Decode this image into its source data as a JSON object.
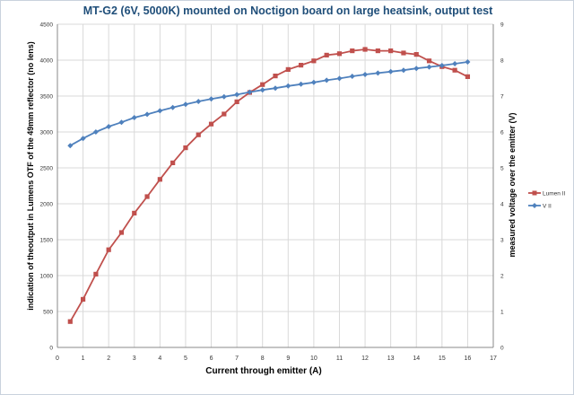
{
  "chart_data": {
    "type": "line",
    "title": "MT-G2 (6V, 5000K) mounted on Noctigon board on large heatsink, output test",
    "xlabel": "Current through emitter (A)",
    "ylabel": "indication of theoutput in Lumens OTF of the 49mm reflector (no lens)",
    "y2label": "measured voltage over the emitter (V)",
    "xlim": [
      0,
      17
    ],
    "ylim": [
      0,
      4500
    ],
    "y2lim": [
      0,
      9
    ],
    "xticks": [
      0,
      1,
      2,
      3,
      4,
      5,
      6,
      7,
      8,
      9,
      10,
      11,
      12,
      13,
      14,
      15,
      16,
      17
    ],
    "yticks": [
      0,
      500,
      1000,
      1500,
      2000,
      2500,
      3000,
      3500,
      4000,
      4500
    ],
    "y2ticks": [
      0,
      1,
      2,
      3,
      4,
      5,
      6,
      7,
      8,
      9
    ],
    "grid": true,
    "legend_position": "right",
    "colors": {
      "lumen": "#c0504d",
      "volt": "#4f81bd",
      "grid": "#d9d9d9",
      "title": "#1f4e79"
    },
    "series": [
      {
        "name": "Lumen II",
        "axis": "left",
        "marker": "square",
        "x": [
          0.5,
          1,
          1.5,
          2,
          2.5,
          3,
          3.5,
          4,
          4.5,
          5,
          5.5,
          6,
          6.5,
          7,
          7.5,
          8,
          8.5,
          9,
          9.5,
          10,
          10.5,
          11,
          11.5,
          12,
          12.5,
          13,
          13.5,
          14,
          14.5,
          15,
          15.5,
          16
        ],
        "values": [
          360,
          670,
          1020,
          1360,
          1600,
          1870,
          2100,
          2340,
          2570,
          2780,
          2960,
          3110,
          3250,
          3420,
          3550,
          3660,
          3780,
          3870,
          3930,
          3990,
          4070,
          4090,
          4130,
          4150,
          4130,
          4130,
          4100,
          4080,
          3990,
          3910,
          3860,
          3770
        ]
      },
      {
        "name": "V II",
        "axis": "right",
        "marker": "diamond",
        "x": [
          0.5,
          1,
          1.5,
          2,
          2.5,
          3,
          3.5,
          4,
          4.5,
          5,
          5.5,
          6,
          6.5,
          7,
          7.5,
          8,
          8.5,
          9,
          9.5,
          10,
          10.5,
          11,
          11.5,
          12,
          12.5,
          13,
          13.5,
          14,
          14.5,
          15,
          15.5,
          16
        ],
        "values": [
          5.62,
          5.82,
          6.0,
          6.15,
          6.27,
          6.4,
          6.49,
          6.59,
          6.68,
          6.77,
          6.85,
          6.92,
          6.98,
          7.04,
          7.11,
          7.17,
          7.22,
          7.28,
          7.33,
          7.38,
          7.44,
          7.49,
          7.55,
          7.6,
          7.64,
          7.68,
          7.72,
          7.77,
          7.81,
          7.85,
          7.9,
          7.95
        ]
      }
    ]
  }
}
